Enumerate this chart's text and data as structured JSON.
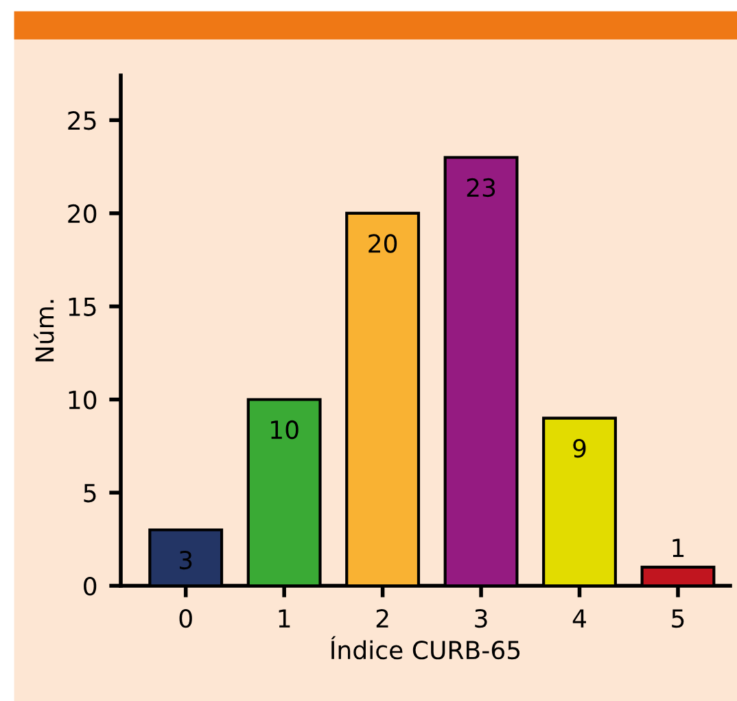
{
  "chart_data": {
    "type": "bar",
    "xlabel": "Índice CURB-65",
    "ylabel": "Núm.",
    "categories": [
      "0",
      "1",
      "2",
      "3",
      "4",
      "5"
    ],
    "values": [
      3,
      10,
      20,
      23,
      9,
      1
    ],
    "colors": [
      "#233565",
      "#3aaa35",
      "#f9b233",
      "#951b81",
      "#e2dc00",
      "#c1151f"
    ],
    "ylim": [
      0,
      27.4
    ],
    "yticks": [
      0,
      5,
      10,
      15,
      20,
      25
    ],
    "grid": false,
    "data_labels": true
  }
}
